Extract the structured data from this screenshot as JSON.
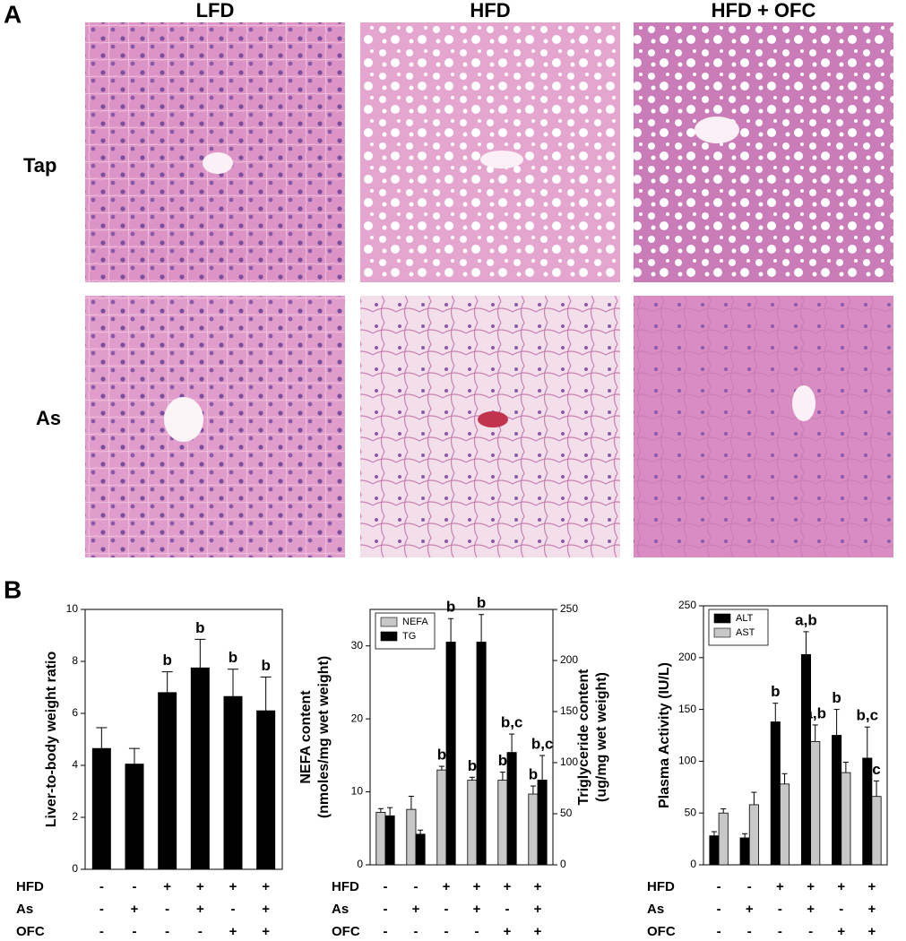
{
  "figure": {
    "panel_a": "A",
    "panel_b": "B",
    "columns": [
      "LFD",
      "HFD",
      "HFD + OFC"
    ],
    "rows": [
      "Tap",
      "As"
    ]
  },
  "chart_data": [
    {
      "type": "bar",
      "y_label": [
        "Liver-to-body weight ratio"
      ],
      "ylim": [
        0,
        10
      ],
      "yticks": [
        0,
        2,
        4,
        6,
        8,
        10
      ],
      "categories": [
        null,
        null,
        null,
        null,
        null,
        null
      ],
      "series": [
        {
          "color": "#000000",
          "values": [
            4.65,
            4.05,
            6.8,
            7.75,
            6.65,
            6.1
          ],
          "errors": [
            0.8,
            0.6,
            0.8,
            1.1,
            1.05,
            1.3
          ],
          "annotations": [
            null,
            null,
            "b",
            "b",
            "b",
            "b"
          ]
        }
      ],
      "conditions": [
        {
          "name": "HFD",
          "signs": [
            "-",
            "-",
            "+",
            "+",
            "+",
            "+"
          ]
        },
        {
          "name": "As",
          "signs": [
            "-",
            "+",
            "-",
            "+",
            "-",
            "+"
          ]
        },
        {
          "name": "OFC",
          "signs": [
            "-",
            "-",
            "-",
            "-",
            "+",
            "+"
          ]
        }
      ]
    },
    {
      "type": "bar",
      "y_label": [
        "NEFA content",
        "(nmoles/mg wet weight)"
      ],
      "y2_label": [
        "Triglyceride content",
        "(ug/mg wet weight)"
      ],
      "ylim": [
        0,
        35
      ],
      "yticks": [
        0,
        10,
        20,
        30
      ],
      "y2lim": [
        0,
        250
      ],
      "y2ticks": [
        0,
        50,
        100,
        150,
        200,
        250
      ],
      "legend": "top-left",
      "categories": [
        null,
        null,
        null,
        null,
        null,
        null
      ],
      "series": [
        {
          "name": "NEFA",
          "color": "#c8c8c8",
          "values": [
            7.2,
            7.6,
            13,
            11.6,
            11.6,
            9.7
          ],
          "errors": [
            0.5,
            1.8,
            0.5,
            0.4,
            1.1,
            1.1
          ],
          "annotations": [
            null,
            null,
            "b",
            "b",
            "b",
            "b"
          ]
        },
        {
          "name": "TG",
          "color": "#000000",
          "axis": "y2",
          "values": [
            48,
            30,
            218,
            218,
            110,
            83
          ],
          "errors": [
            8,
            4,
            23,
            27,
            18,
            24
          ],
          "annotations": [
            null,
            null,
            "b",
            "b",
            "b,c",
            "b,c"
          ]
        }
      ],
      "conditions": [
        {
          "name": "HFD",
          "signs": [
            "-",
            "-",
            "+",
            "+",
            "+",
            "+"
          ]
        },
        {
          "name": "As",
          "signs": [
            "-",
            "+",
            "-",
            "+",
            "-",
            "+"
          ]
        },
        {
          "name": "OFC",
          "signs": [
            "-",
            "-",
            "-",
            "-",
            "+",
            "+"
          ]
        }
      ]
    },
    {
      "type": "bar",
      "y_label": [
        "Plasma Activity (IU/L)"
      ],
      "ylim": [
        0,
        250
      ],
      "yticks": [
        0,
        50,
        100,
        150,
        200,
        250
      ],
      "legend": "top-left",
      "categories": [
        null,
        null,
        null,
        null,
        null,
        null
      ],
      "series": [
        {
          "name": "ALT",
          "color": "#000000",
          "values": [
            28,
            26,
            138,
            203,
            125,
            103
          ],
          "errors": [
            4,
            4,
            18,
            22,
            25,
            30
          ],
          "annotations": [
            null,
            null,
            "b",
            "a,b",
            "b",
            "b,c"
          ]
        },
        {
          "name": "AST",
          "color": "#c8c8c8",
          "values": [
            50,
            58,
            78,
            119,
            89,
            66
          ],
          "errors": [
            4,
            12,
            10,
            16,
            10,
            15
          ],
          "annotations": [
            null,
            null,
            null,
            "a,b",
            null,
            "c"
          ]
        }
      ],
      "conditions": [
        {
          "name": "HFD",
          "signs": [
            "-",
            "-",
            "+",
            "+",
            "+",
            "+"
          ]
        },
        {
          "name": "As",
          "signs": [
            "-",
            "+",
            "-",
            "+",
            "-",
            "+"
          ]
        },
        {
          "name": "OFC",
          "signs": [
            "-",
            "-",
            "-",
            "-",
            "+",
            "+"
          ]
        }
      ]
    }
  ]
}
